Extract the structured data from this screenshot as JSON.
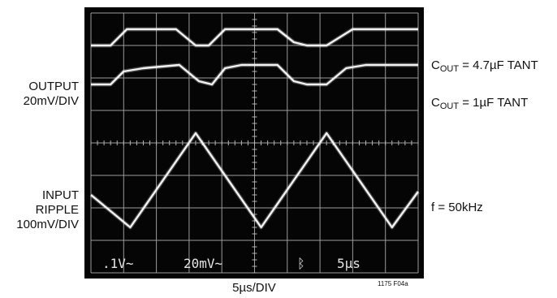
{
  "chart_data": {
    "type": "line",
    "xlabel": "5µs/DIV",
    "figure_id": "1175 F04a",
    "left_labels": {
      "output_line1": "OUTPUT",
      "output_line2": "20mV/DIV",
      "input_line1": "INPUT",
      "input_line2": "RIPPLE",
      "input_line3": "100mV/DIV"
    },
    "right_labels": {
      "cout_47_prefix": "C",
      "cout_47_sub": "OUT",
      "cout_47_suffix": " = 4.7µF TANT",
      "cout_1_prefix": "C",
      "cout_1_sub": "OUT",
      "cout_1_suffix": " = 1µF TANT",
      "freq": "f = 50kHz"
    },
    "screen_readout": {
      "ch1": ".1V~",
      "ch2": "20mV~",
      "trigger": "ᛒ",
      "time": "5µs"
    },
    "grid": true,
    "divisions": {
      "x": 10,
      "y": 8
    },
    "xlim": [
      0,
      50
    ],
    "ylim_div": [
      0,
      8
    ],
    "series": [
      {
        "name": "COUT = 4.7µF TANT",
        "color": "#f2f2f2",
        "x": [
          0,
          3,
          5.5,
          7.5,
          13,
          16,
          18,
          20.5,
          23,
          28.5,
          31,
          33,
          36,
          40,
          50
        ],
        "y": [
          7.0,
          7.0,
          7.5,
          7.5,
          7.5,
          7.0,
          7.0,
          7.5,
          7.5,
          7.5,
          7.1,
          7.0,
          7.0,
          7.5,
          7.5
        ]
      },
      {
        "name": "COUT = 1µF TANT",
        "color": "#f2f2f2",
        "x": [
          0,
          3,
          5,
          8,
          13.5,
          16.5,
          18.5,
          20.5,
          23,
          28.5,
          31,
          33,
          36,
          39,
          42,
          50
        ],
        "y": [
          5.8,
          5.8,
          6.2,
          6.3,
          6.4,
          5.9,
          5.8,
          6.3,
          6.4,
          6.4,
          5.9,
          5.8,
          5.8,
          6.3,
          6.4,
          6.4
        ]
      },
      {
        "name": "f = 50kHz",
        "color": "#f2f2f2",
        "x": [
          0,
          6,
          16,
          26,
          36,
          46,
          50
        ],
        "y": [
          2.4,
          1.4,
          4.3,
          1.4,
          4.3,
          1.4,
          2.5
        ]
      }
    ]
  }
}
